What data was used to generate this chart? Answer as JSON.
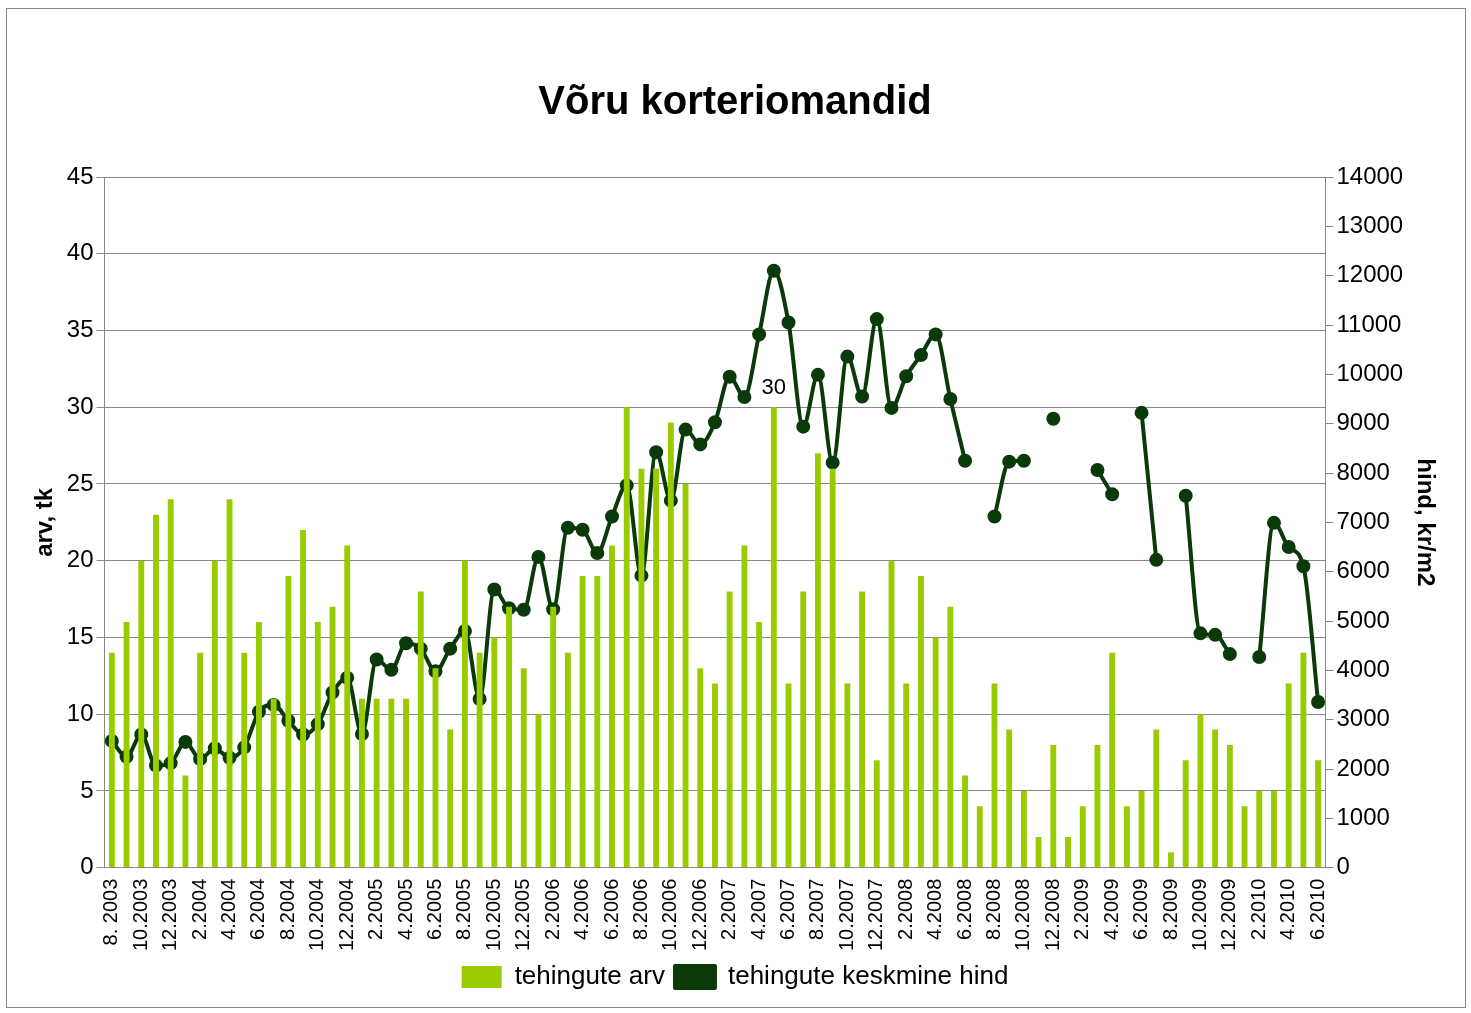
{
  "chart_data": {
    "type": "bar",
    "title": "Võru korteriomandid",
    "ylabel": "arv, tk",
    "y2label": "hind, kr/m2",
    "categories": [
      "8. 2003",
      null,
      "10.2003",
      null,
      "12.2003",
      null,
      "2.2004",
      null,
      "4.2004",
      null,
      "6.2004",
      null,
      "8.2004",
      null,
      "10.2004",
      null,
      "12.2004",
      null,
      "2.2005",
      null,
      "4.2005",
      null,
      "6.2005",
      null,
      "8.2005",
      null,
      "10.2005",
      null,
      "12.2005",
      null,
      "2.2006",
      null,
      "4.2006",
      null,
      "6.2006",
      null,
      "8.2006",
      null,
      "10.2006",
      null,
      "12.2006",
      null,
      "2.2007",
      null,
      "4.2007",
      null,
      "6.2007",
      null,
      "8.2007",
      null,
      "10.2007",
      null,
      "12.2007",
      null,
      "2.2008",
      null,
      "4.2008",
      null,
      "6.2008",
      null,
      "8.2008",
      null,
      "10.2008",
      null,
      "12.2008",
      null,
      "2.2009",
      null,
      "4.2009",
      null,
      "6.2009",
      null,
      "8.2009",
      null,
      "10.2009",
      null,
      "12.2009",
      null,
      "2.2010",
      null,
      "4.2010",
      null,
      "6.2010"
    ],
    "series": [
      {
        "name": "tehingute arv",
        "color": "#99cc00",
        "values": [
          14,
          16,
          20,
          23,
          24,
          6,
          14,
          20,
          24,
          14,
          16,
          11,
          19,
          22,
          16,
          17,
          21,
          11,
          11,
          11,
          11,
          18,
          13,
          9,
          20,
          14,
          15,
          17,
          13,
          10,
          17,
          14,
          19,
          19,
          21,
          30,
          26,
          26,
          29,
          25,
          13,
          12,
          18,
          21,
          16,
          30,
          12,
          18,
          27,
          26,
          12,
          18,
          7,
          20,
          12,
          19,
          15,
          17,
          6,
          4,
          12,
          9,
          5,
          2,
          8,
          2,
          4,
          8,
          14,
          4,
          5,
          9,
          1,
          7,
          10,
          9,
          8,
          4,
          5,
          5,
          12,
          14,
          7
        ],
        "value_labels": [
          null,
          null,
          null,
          null,
          null,
          null,
          null,
          null,
          null,
          null,
          null,
          null,
          null,
          null,
          null,
          null,
          null,
          null,
          null,
          null,
          null,
          null,
          null,
          null,
          null,
          null,
          null,
          null,
          null,
          null,
          null,
          null,
          null,
          null,
          null,
          null,
          null,
          null,
          null,
          null,
          null,
          null,
          null,
          null,
          null,
          "30",
          null,
          null,
          null,
          null,
          null,
          null,
          null,
          null,
          null,
          null,
          null,
          null,
          null,
          null,
          null,
          null,
          null,
          null,
          null,
          null,
          null,
          null,
          null,
          null,
          null,
          null,
          null,
          null,
          null,
          null,
          null,
          null,
          null,
          null,
          null,
          null,
          null
        ]
      },
      {
        "name": "tehingute keskmine hind",
        "type": "line",
        "axis": "y2",
        "color": "#0a3a0a",
        "marker": "circle",
        "values": [
          2570,
          2250,
          2700,
          2070,
          2120,
          2550,
          2200,
          2420,
          2230,
          2440,
          3160,
          3300,
          2980,
          2700,
          2910,
          3550,
          3850,
          2710,
          4220,
          4010,
          4550,
          4440,
          3980,
          4440,
          4800,
          3420,
          5640,
          5260,
          5230,
          6300,
          5240,
          6890,
          6850,
          6380,
          7120,
          7750,
          5920,
          8420,
          7440,
          8880,
          8580,
          9030,
          9950,
          9540,
          10810,
          12100,
          11050,
          8940,
          9990,
          8210,
          10360,
          9550,
          11120,
          9320,
          9960,
          10390,
          10810,
          9500,
          8250,
          null,
          7120,
          8230,
          8250,
          null,
          9100,
          null,
          null,
          8060,
          7570,
          null,
          9220,
          6240,
          null,
          7540,
          4750,
          4720,
          4330,
          null,
          4270,
          6990,
          6500,
          6110,
          3360
        ]
      }
    ],
    "ylim": [
      0,
      45
    ],
    "yticks": [
      0,
      5,
      10,
      15,
      20,
      25,
      30,
      35,
      40,
      45
    ],
    "y2lim": [
      0,
      14000
    ],
    "y2ticks": [
      0,
      1000,
      2000,
      3000,
      4000,
      5000,
      6000,
      7000,
      8000,
      9000,
      10000,
      11000,
      12000,
      13000,
      14000
    ],
    "grid": "y",
    "legend": "bottom"
  }
}
